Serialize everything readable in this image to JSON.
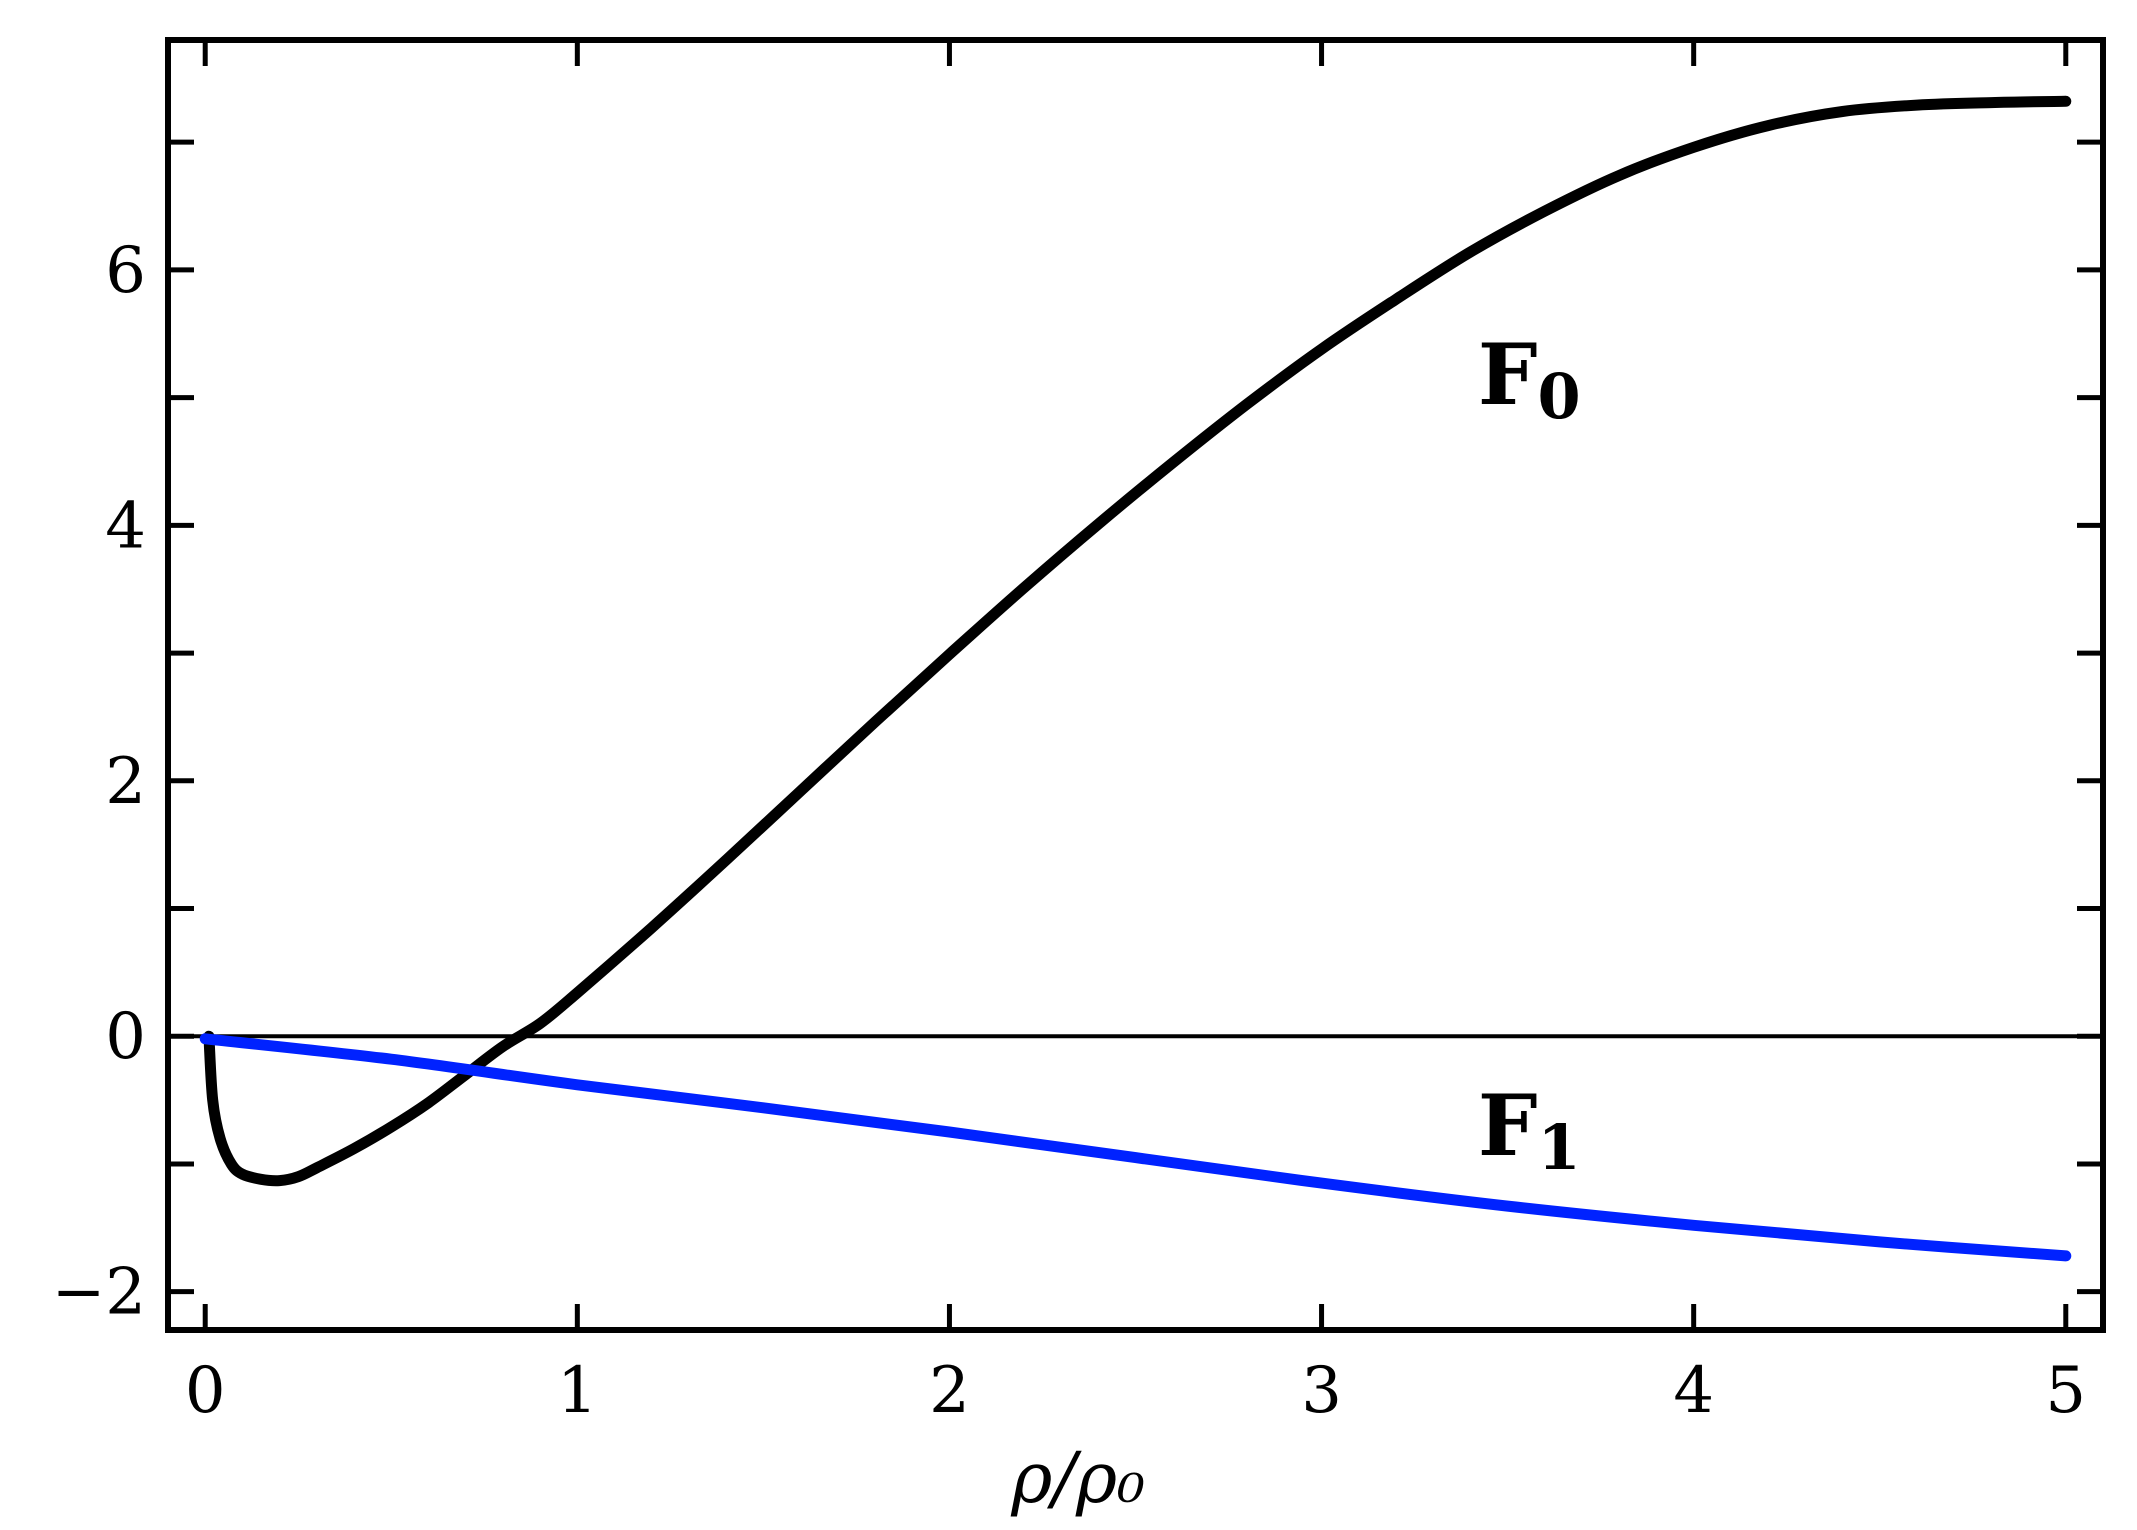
{
  "chart_data": {
    "type": "line",
    "xlabel": "ρ/ρ₀",
    "ylabel": "",
    "xlim": [
      -0.1,
      5.1
    ],
    "ylim": [
      -2.3,
      7.8
    ],
    "xticks": [
      0,
      1,
      2,
      3,
      4,
      5
    ],
    "xtick_labels": [
      "0",
      "1",
      "2",
      "3",
      "4",
      "5"
    ],
    "xticks_minor": [],
    "yticks": [
      -2,
      -1,
      0,
      1,
      2,
      3,
      4,
      5,
      6,
      7
    ],
    "yticks_labeled": [
      -2,
      0,
      2,
      4,
      6
    ],
    "ytick_labels": [
      "−2",
      "0",
      "2",
      "4",
      "6"
    ],
    "grid": false,
    "zero_line": true,
    "series": [
      {
        "name": "F0",
        "label_main": "F",
        "label_sub": "0",
        "color": "#000000",
        "x": [
          0.01,
          0.02,
          0.04,
          0.07,
          0.1,
          0.15,
          0.2,
          0.25,
          0.3,
          0.4,
          0.5,
          0.6,
          0.7,
          0.8,
          0.9,
          1.0,
          1.2,
          1.4,
          1.6,
          1.8,
          2.0,
          2.2,
          2.4,
          2.6,
          2.8,
          3.0,
          3.2,
          3.4,
          3.6,
          3.8,
          4.0,
          4.2,
          4.4,
          4.6,
          4.8,
          5.0
        ],
        "y": [
          0.0,
          -0.5,
          -0.8,
          -1.0,
          -1.08,
          -1.12,
          -1.13,
          -1.1,
          -1.03,
          -0.88,
          -0.71,
          -0.52,
          -0.3,
          -0.08,
          0.1,
          0.34,
          0.85,
          1.38,
          1.92,
          2.46,
          2.99,
          3.51,
          4.01,
          4.49,
          4.95,
          5.38,
          5.77,
          6.14,
          6.46,
          6.74,
          6.96,
          7.13,
          7.24,
          7.29,
          7.31,
          7.32
        ],
        "label_position": [
          3.42,
          4.95
        ]
      },
      {
        "name": "F1",
        "label_main": "F",
        "label_sub": "1",
        "color": "#0022ff",
        "x": [
          0.0,
          0.5,
          1.0,
          1.5,
          2.0,
          2.5,
          3.0,
          3.5,
          4.0,
          4.5,
          5.0
        ],
        "y": [
          -0.02,
          -0.18,
          -0.38,
          -0.56,
          -0.75,
          -0.95,
          -1.15,
          -1.33,
          -1.48,
          -1.61,
          -1.72
        ],
        "label_position": [
          3.42,
          -0.93
        ]
      }
    ]
  }
}
